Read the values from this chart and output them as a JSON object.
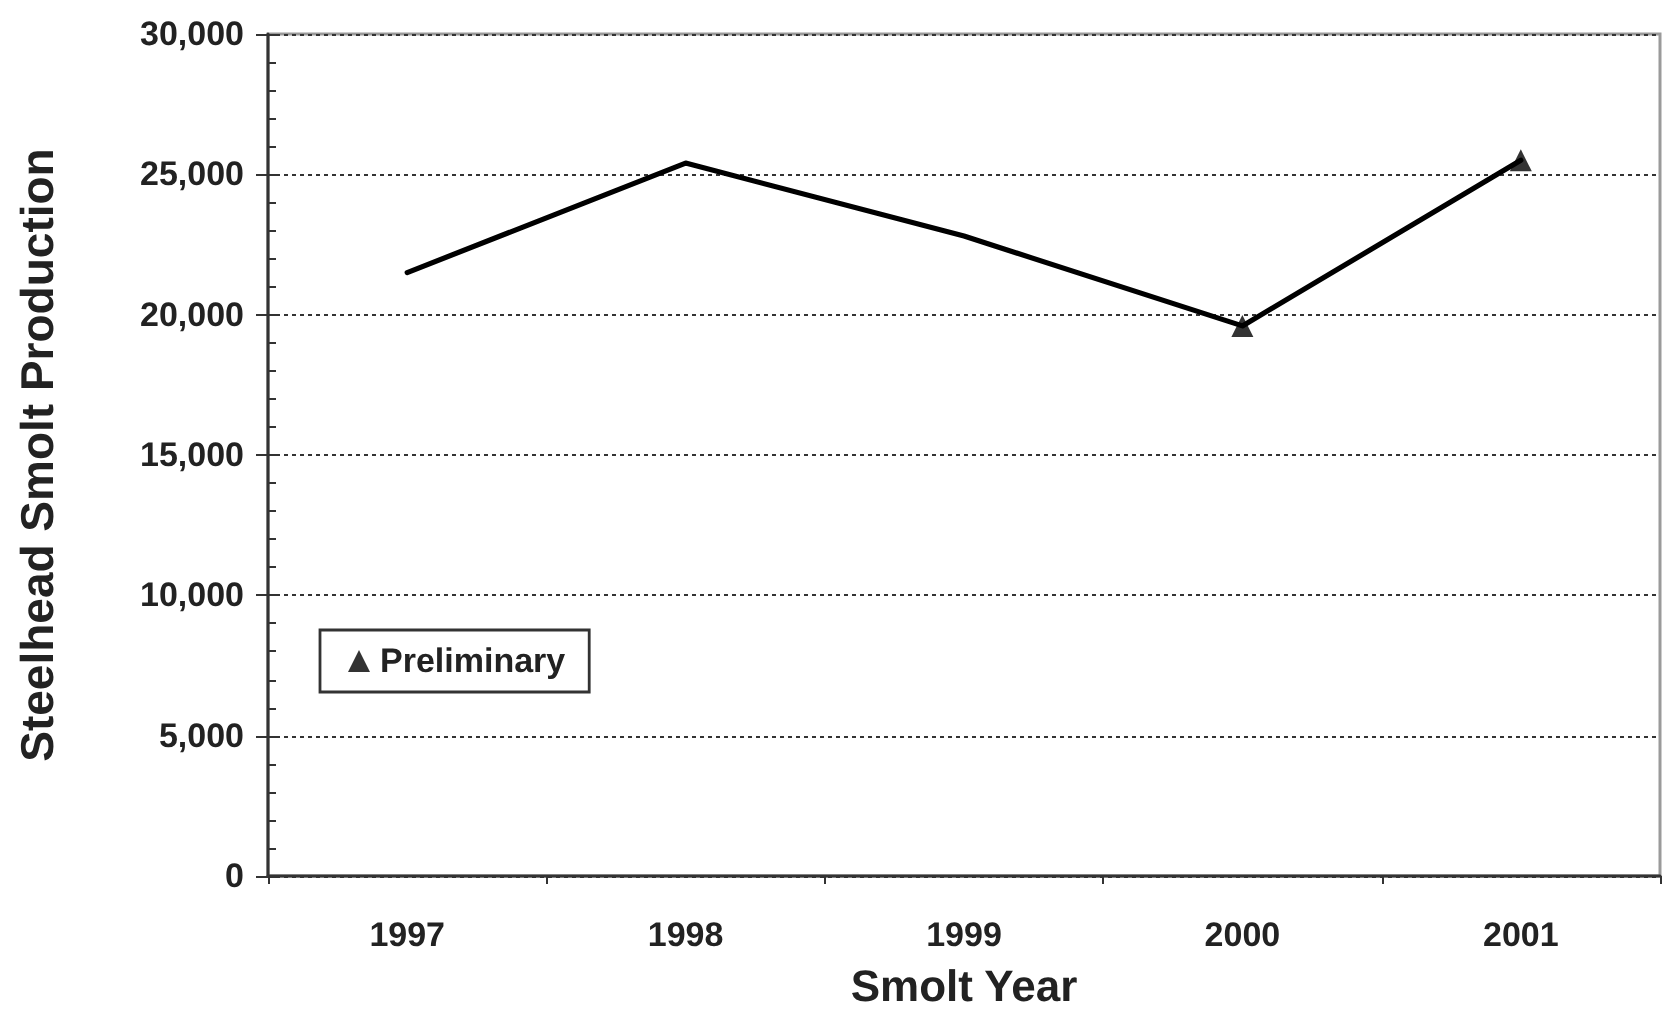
{
  "chart_data": {
    "type": "line",
    "categories": [
      "1997",
      "1998",
      "1999",
      "2000",
      "2001"
    ],
    "series": [
      {
        "values": [
          21500,
          25400,
          22800,
          19600,
          25500
        ],
        "color": "#000000",
        "marker": "none"
      },
      {
        "name": "Preliminary",
        "type": "scatter",
        "values": [
          null,
          null,
          null,
          19600,
          25500
        ],
        "color": "#000000",
        "marker": "triangle"
      }
    ],
    "xlabel": "Smolt Year",
    "ylabel": "Steelhead Smolt Production",
    "ylim": [
      0,
      30000
    ],
    "yticks": [
      {
        "value": 0,
        "label": "0"
      },
      {
        "value": 1000,
        "label": null
      },
      {
        "value": 2000,
        "label": null
      },
      {
        "value": 3000,
        "label": null
      },
      {
        "value": 4000,
        "label": null
      },
      {
        "value": 5000,
        "label": "5,000"
      },
      {
        "value": 6000,
        "label": null
      },
      {
        "value": 7000,
        "label": null
      },
      {
        "value": 8000,
        "label": null
      },
      {
        "value": 9000,
        "label": null
      },
      {
        "value": 10000,
        "label": "10,000"
      },
      {
        "value": 11000,
        "label": null
      },
      {
        "value": 12000,
        "label": null
      },
      {
        "value": 13000,
        "label": null
      },
      {
        "value": 14000,
        "label": null
      },
      {
        "value": 15000,
        "label": "15,000"
      },
      {
        "value": 16000,
        "label": null
      },
      {
        "value": 17000,
        "label": null
      },
      {
        "value": 18000,
        "label": null
      },
      {
        "value": 19000,
        "label": null
      },
      {
        "value": 20000,
        "label": "20,000"
      },
      {
        "value": 21000,
        "label": null
      },
      {
        "value": 22000,
        "label": null
      },
      {
        "value": 23000,
        "label": null
      },
      {
        "value": 24000,
        "label": null
      },
      {
        "value": 25000,
        "label": "25,000"
      },
      {
        "value": 26000,
        "label": null
      },
      {
        "value": 27000,
        "label": null
      },
      {
        "value": 28000,
        "label": null
      },
      {
        "value": 29000,
        "label": null
      },
      {
        "value": 30000,
        "label": "30,000"
      }
    ],
    "grid": "y",
    "legend": "bottom left",
    "line_style": "solid"
  }
}
